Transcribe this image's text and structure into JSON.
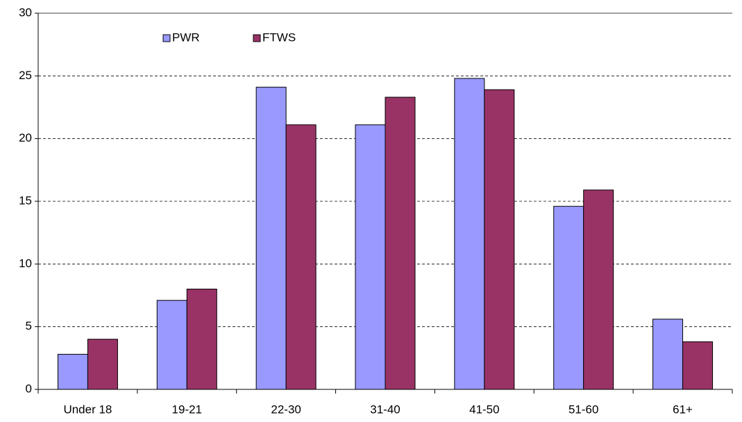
{
  "chart_data": {
    "type": "bar",
    "categories": [
      "Under 18",
      "19-21",
      "22-30",
      "31-40",
      "41-50",
      "51-60",
      "61+"
    ],
    "series": [
      {
        "name": "PWR",
        "color": "#9999ff",
        "values": [
          2.8,
          7.1,
          24.1,
          21.1,
          24.8,
          14.6,
          5.6
        ]
      },
      {
        "name": "FTWS",
        "color": "#993366",
        "values": [
          4.0,
          8.0,
          21.1,
          23.3,
          23.9,
          15.9,
          3.8
        ]
      }
    ],
    "ylim": [
      0,
      30
    ],
    "yticks": [
      0,
      5,
      10,
      15,
      20,
      25,
      30
    ],
    "grid": true,
    "legend": "top-left"
  }
}
